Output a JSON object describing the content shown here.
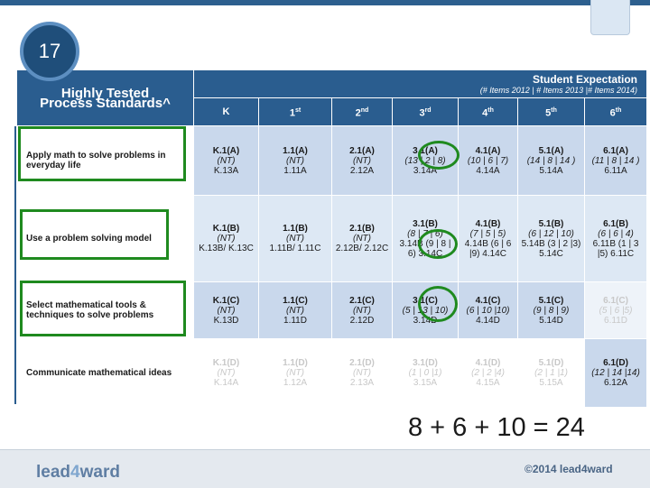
{
  "slide_number": "17",
  "header": {
    "title_line1": "Highly Tested",
    "title_line2": "Process Standards^",
    "expectation_title": "Student Expectation",
    "expectation_subtitle": "(# Items 2012 | # Items 2013 |# Items 2014)",
    "grades": [
      {
        "base": "K",
        "sup": ""
      },
      {
        "base": "1",
        "sup": "st"
      },
      {
        "base": "2",
        "sup": "nd"
      },
      {
        "base": "3",
        "sup": "rd"
      },
      {
        "base": "4",
        "sup": "th"
      },
      {
        "base": "5",
        "sup": "th"
      },
      {
        "base": "6",
        "sup": "th"
      }
    ]
  },
  "rows": [
    {
      "process": "Apply math to solve problems in everyday life",
      "cells": [
        {
          "code": "K.1(A)",
          "items": "(NT)",
          "std": "K.13A"
        },
        {
          "code": "1.1(A)",
          "items": "(NT)",
          "std": "1.11A"
        },
        {
          "code": "2.1(A)",
          "items": "(NT)",
          "std": "2.12A"
        },
        {
          "code": "3.1(A)",
          "items": "(13 | 2 | 8)",
          "std": "3.14A"
        },
        {
          "code": "4.1(A)",
          "items": "(10 | 6 | 7)",
          "std": "4.14A"
        },
        {
          "code": "5.1(A)",
          "items": "(14 | 8 | 14 )",
          "std": "5.14A"
        },
        {
          "code": "6.1(A)",
          "items": "(11 | 8 | 14 )",
          "std": "6.11A"
        }
      ]
    },
    {
      "process": "Use a problem solving model",
      "cells": [
        {
          "code": "K.1(B)",
          "items": "(NT)",
          "std": "K.13B/ K.13C"
        },
        {
          "code": "1.1(B)",
          "items": "(NT)",
          "std": "1.11B/ 1.11C"
        },
        {
          "code": "2.1(B)",
          "items": "(NT)",
          "std": "2.12B/ 2.12C"
        },
        {
          "code": "3.1(B)",
          "items": "(8 | 7 | 6)",
          "std": "3.14B (9 | 8 | 6) 3.14C"
        },
        {
          "code": "4.1(B)",
          "items": "(7 | 5 | 5)",
          "std": "4.14B (6 | 6 |9) 4.14C"
        },
        {
          "code": "5.1(B)",
          "items": "(6 | 12 | 10)",
          "std": "5.14B (3 | 2 |3) 5.14C"
        },
        {
          "code": "6.1(B)",
          "items": "(6 | 6 | 4)",
          "std": "6.11B (1 | 3 |5) 6.11C"
        }
      ]
    },
    {
      "process": "Select mathematical tools & techniques to solve problems",
      "cells": [
        {
          "code": "K.1(C)",
          "items": "(NT)",
          "std": "K.13D"
        },
        {
          "code": "1.1(C)",
          "items": "(NT)",
          "std": "1.11D"
        },
        {
          "code": "2.1(C)",
          "items": "(NT)",
          "std": "2.12D"
        },
        {
          "code": "3.1(C)",
          "items": "(5 | 13 | 10)",
          "std": "3.14D"
        },
        {
          "code": "4.1(C)",
          "items": "(6 | 10 |10)",
          "std": "4.14D"
        },
        {
          "code": "5.1(C)",
          "items": "(9 | 8 | 9)",
          "std": "5.14D"
        },
        {
          "code": "6.1(C)",
          "items": "(5 | 6 |5)",
          "std": "6.11D"
        }
      ]
    },
    {
      "process": "Communicate mathematical ideas",
      "cells": [
        {
          "code": "K.1(D)",
          "items": "(NT)",
          "std": "K.14A"
        },
        {
          "code": "1.1(D)",
          "items": "(NT)",
          "std": "1.12A"
        },
        {
          "code": "2.1(D)",
          "items": "(NT)",
          "std": "2.13A"
        },
        {
          "code": "3.1(D)",
          "items": "(1 | 0 |1)",
          "std": "3.15A"
        },
        {
          "code": "4.1(D)",
          "items": "(2 | 2 |4)",
          "std": "4.15A"
        },
        {
          "code": "5.1(D)",
          "items": "(2 | 1 |1)",
          "std": "5.15A"
        },
        {
          "code": "6.1(D)",
          "items": "(12 | 14 |14)",
          "std": "6.12A"
        }
      ]
    }
  ],
  "equation": "8 + 6 + 10 = 24",
  "footer": {
    "brand_pre": "lead",
    "brand_four": "4",
    "brand_post": "ward",
    "copyright": "©2014 lead4ward"
  },
  "colors": {
    "header_blue": "#2a5d8f",
    "highlight_green": "#1f8a1f",
    "cell_blue": "#c9d8ec"
  }
}
